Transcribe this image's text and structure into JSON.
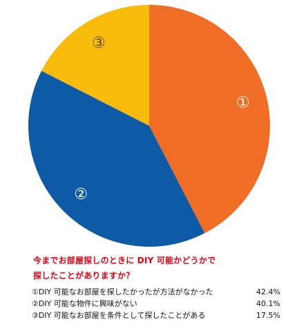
{
  "chart_data": {
    "type": "pie",
    "title_lines": [
      "今までお部屋探しのときに DIY 可能かどうかで",
      "探したことがありますか？"
    ],
    "slices": [
      {
        "marker": "①",
        "label": "①DIY 可能なお部屋を探したかったが方法がなかった",
        "value": 42.4,
        "value_text": "42.4%",
        "color": "#ef6d24"
      },
      {
        "marker": "②",
        "label": "②DIY 可能な物件に興味がない",
        "value": 40.1,
        "value_text": "40.1%",
        "color": "#0d5aa6"
      },
      {
        "marker": "③",
        "label": "③DIY 可能なお部屋を条件として探したことがある",
        "value": 17.5,
        "value_text": "17.5%",
        "color": "#f8bb0c"
      }
    ],
    "start_direction": "top",
    "direction": "clockwise",
    "legend_placement": "bottom"
  }
}
